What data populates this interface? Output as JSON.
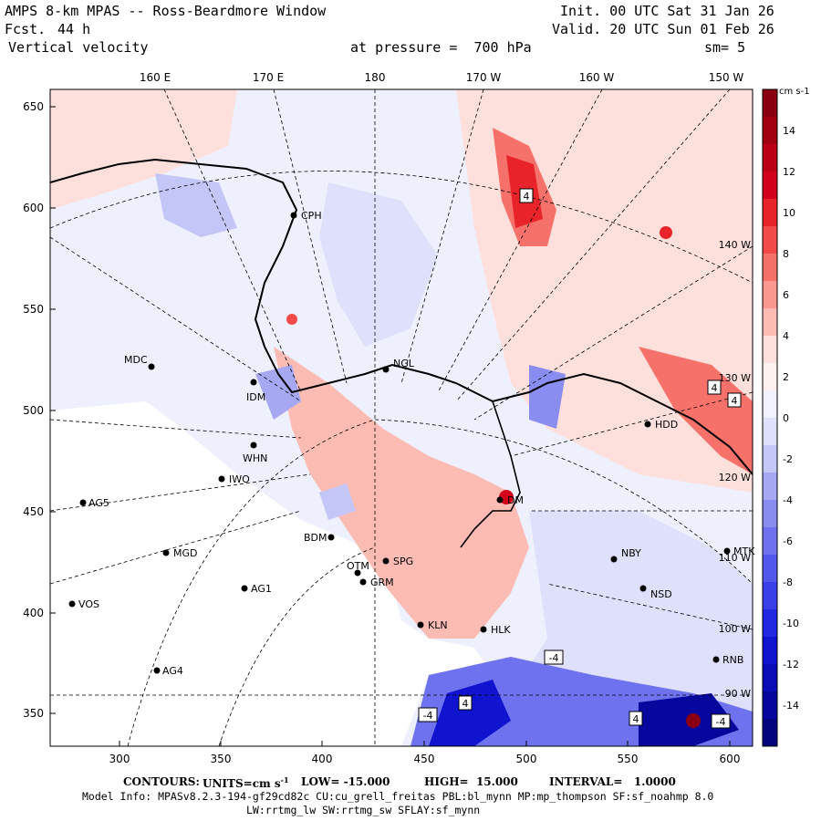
{
  "header": {
    "title": "AMPS 8-km MPAS -- Ross-Beardmore Window",
    "fcst_label": "Fcst.",
    "fcst_value": "44 h",
    "field": "Vertical velocity",
    "init": "Init. 00 UTC Sat 31 Jan 26",
    "valid": "Valid. 20 UTC Sun 01 Feb 26",
    "level": "at pressure =  700 hPa",
    "smooth": "sm= 5"
  },
  "axes": {
    "x_ticks": [
      "300",
      "350",
      "400",
      "450",
      "500",
      "550",
      "600"
    ],
    "y_ticks": [
      "650",
      "600",
      "550",
      "500",
      "450",
      "400",
      "350"
    ],
    "lon_labels": [
      "160 E",
      "170 E",
      "180",
      "170 W",
      "160 W",
      "150 W"
    ],
    "right_lon_labels": [
      "140 W",
      "130 W",
      "120 W",
      "110 W",
      "100 W",
      "90 W"
    ]
  },
  "colorbar": {
    "unit": "cm s-1",
    "tick_labels": [
      "14",
      "12",
      "10",
      "8",
      "6",
      "4",
      "2",
      "0",
      "-2",
      "-4",
      "-6",
      "-8",
      "-10",
      "-12",
      "-14"
    ],
    "colors": [
      "#8a0010",
      "#a30012",
      "#bb0016",
      "#d3001c",
      "#e8242a",
      "#f24a48",
      "#f7716b",
      "#fa978f",
      "#fcbcb4",
      "#fde0dc",
      "#fdf2f0",
      "#f2f2fd",
      "#dfe0fb",
      "#c4c6f7",
      "#a6a9f2",
      "#8a8df0",
      "#6e72ef",
      "#5257ec",
      "#3a3fe7",
      "#2227e0",
      "#1114cf",
      "#0a0cb7",
      "#05079d",
      "#03057f"
    ]
  },
  "stations": [
    {
      "id": "CPH"
    },
    {
      "id": "MDC"
    },
    {
      "id": "NGL"
    },
    {
      "id": "IDM"
    },
    {
      "id": "WHN"
    },
    {
      "id": "IWO"
    },
    {
      "id": "AG5"
    },
    {
      "id": "BDM"
    },
    {
      "id": "MGD"
    },
    {
      "id": "OTM"
    },
    {
      "id": "SPG"
    },
    {
      "id": "GRM"
    },
    {
      "id": "AG1"
    },
    {
      "id": "VOS"
    },
    {
      "id": "KLN"
    },
    {
      "id": "HLK"
    },
    {
      "id": "AG4"
    },
    {
      "id": "NBY"
    },
    {
      "id": "NSD"
    },
    {
      "id": "MTK"
    },
    {
      "id": "RNB"
    },
    {
      "id": "HDD"
    },
    {
      "id": "DM"
    }
  ],
  "extrema_marks": [
    "4",
    "4",
    "4",
    "4",
    "-4",
    "-4",
    "4",
    "-4"
  ],
  "footer": {
    "contours_label": "CONTOURS:",
    "units_label": "UNITS=cm s",
    "units_sup": "-1",
    "low": "LOW= -15.000",
    "high": "HIGH=  15.000",
    "interval": "INTERVAL=   1.0000",
    "model_info": "Model Info: MPASv8.2.3-194-gf29cd82c CU:cu_grell_freitas PBL:bl_mynn MP:mp_thompson SF:sf_noahmp 8.0",
    "model_info2": "LW:rrtmg_lw SW:rrtmg_sw SFLAY:sf_mynn"
  }
}
